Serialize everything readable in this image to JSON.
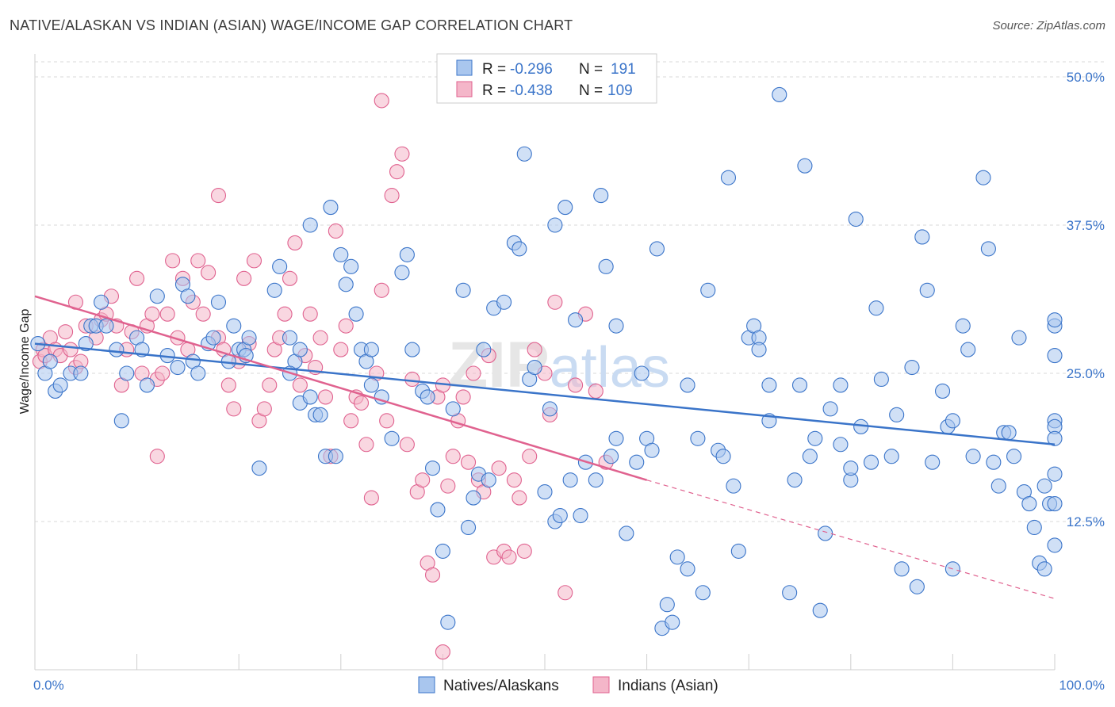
{
  "title": "NATIVE/ALASKAN VS INDIAN (ASIAN) WAGE/INCOME GAP CORRELATION CHART",
  "source": "Source: ZipAtlas.com",
  "watermark": "ZIPatlas",
  "colors": {
    "blue": "#3a74c9",
    "blue_fill": "#a9c6ee",
    "pink": "#e0628f",
    "pink_fill": "#f4b6c9",
    "grid": "#d9d9d9"
  },
  "legend": {
    "rows": [
      {
        "r_label": "R =",
        "r_value": "-0.296",
        "n_label": "N =",
        "n_value": "191"
      },
      {
        "r_label": "R =",
        "r_value": "-0.438",
        "n_label": "N =",
        "n_value": "109"
      }
    ]
  },
  "bottom_legend": [
    "Natives/Alaskans",
    "Indians (Asian)"
  ],
  "chart_data": {
    "type": "scatter",
    "title": "NATIVE/ALASKAN VS INDIAN (ASIAN) WAGE/INCOME GAP CORRELATION CHART",
    "ylabel": "Wage/Income Gap",
    "xlabel": "",
    "xlim": [
      0,
      100
    ],
    "ylim": [
      0,
      52
    ],
    "x_tick_labels": [
      "0.0%",
      "100.0%"
    ],
    "y_ticks": [
      12.5,
      25.0,
      37.5,
      50.0
    ],
    "y_tick_labels": [
      "12.5%",
      "25.0%",
      "37.5%",
      "50.0%"
    ],
    "grid": true,
    "legend_position": "top-center",
    "series": [
      {
        "name": "Natives/Alaskans",
        "r": -0.296,
        "n": 191,
        "trend": {
          "x": [
            0,
            100
          ],
          "y": [
            27.5,
            19.0
          ]
        },
        "points": [
          [
            0.3,
            27.5
          ],
          [
            1,
            25
          ],
          [
            1.5,
            26
          ],
          [
            2,
            23.5
          ],
          [
            2.5,
            24
          ],
          [
            3.5,
            25
          ],
          [
            4.5,
            25
          ],
          [
            5,
            27.5
          ],
          [
            5.5,
            29
          ],
          [
            6,
            29
          ],
          [
            6.5,
            31
          ],
          [
            7,
            29
          ],
          [
            8,
            27
          ],
          [
            8.5,
            21
          ],
          [
            9,
            25
          ],
          [
            10,
            28
          ],
          [
            10.5,
            27
          ],
          [
            11,
            24
          ],
          [
            12,
            31.5
          ],
          [
            13,
            26.5
          ],
          [
            14,
            25.5
          ],
          [
            14.5,
            32.5
          ],
          [
            15,
            31.5
          ],
          [
            15.5,
            26
          ],
          [
            16,
            25
          ],
          [
            17,
            27.5
          ],
          [
            17.5,
            28
          ],
          [
            18,
            31
          ],
          [
            19,
            26
          ],
          [
            19.5,
            29
          ],
          [
            20,
            27
          ],
          [
            20.5,
            27
          ],
          [
            20.7,
            26.5
          ],
          [
            21,
            28
          ],
          [
            22,
            17
          ],
          [
            23.5,
            32
          ],
          [
            24,
            34
          ],
          [
            25,
            28
          ],
          [
            25.5,
            26
          ],
          [
            25,
            25
          ],
          [
            26,
            27
          ],
          [
            26,
            22.5
          ],
          [
            27,
            23
          ],
          [
            27,
            37.5
          ],
          [
            27.5,
            21.5
          ],
          [
            28,
            21.5
          ],
          [
            28.5,
            18
          ],
          [
            29,
            39
          ],
          [
            29.5,
            18
          ],
          [
            30,
            35
          ],
          [
            30.5,
            32.5
          ],
          [
            31,
            34
          ],
          [
            31.5,
            30
          ],
          [
            32,
            27
          ],
          [
            32.5,
            26
          ],
          [
            33,
            27
          ],
          [
            33,
            24
          ],
          [
            34,
            23
          ],
          [
            35,
            19.5
          ],
          [
            36,
            33.5
          ],
          [
            36.5,
            35
          ],
          [
            37,
            27
          ],
          [
            38,
            23.5
          ],
          [
            38.5,
            23
          ],
          [
            39,
            17
          ],
          [
            39.5,
            13.5
          ],
          [
            40,
            10
          ],
          [
            40.5,
            4
          ],
          [
            41,
            22
          ],
          [
            42,
            32
          ],
          [
            42.5,
            12
          ],
          [
            43,
            14.5
          ],
          [
            43.5,
            16.5
          ],
          [
            44,
            27
          ],
          [
            44.5,
            16
          ],
          [
            45,
            30.5
          ],
          [
            46,
            31
          ],
          [
            47,
            36
          ],
          [
            47.5,
            35.5
          ],
          [
            48,
            43.5
          ],
          [
            48.5,
            24.5
          ],
          [
            49,
            25.5
          ],
          [
            50,
            15
          ],
          [
            50.5,
            22
          ],
          [
            51,
            12.5
          ],
          [
            51,
            37.5
          ],
          [
            51.5,
            13
          ],
          [
            52,
            39
          ],
          [
            52.5,
            16
          ],
          [
            53,
            29.5
          ],
          [
            53.5,
            13
          ],
          [
            54,
            17.5
          ],
          [
            55,
            16
          ],
          [
            55.5,
            40
          ],
          [
            56,
            34
          ],
          [
            57,
            29
          ],
          [
            56.5,
            18
          ],
          [
            57,
            19.5
          ],
          [
            58,
            11.5
          ],
          [
            59,
            17.5
          ],
          [
            59.5,
            25
          ],
          [
            60,
            19.5
          ],
          [
            60.5,
            18.5
          ],
          [
            61,
            35.5
          ],
          [
            61.5,
            3.5
          ],
          [
            62,
            5.5
          ],
          [
            62.5,
            4
          ],
          [
            63,
            9.5
          ],
          [
            64,
            24
          ],
          [
            64,
            8.5
          ],
          [
            65,
            19.5
          ],
          [
            66,
            32
          ],
          [
            65.5,
            6.5
          ],
          [
            67,
            18.5
          ],
          [
            67.5,
            18
          ],
          [
            68,
            41.5
          ],
          [
            68.5,
            15.5
          ],
          [
            69,
            10
          ],
          [
            70,
            28
          ],
          [
            70.5,
            29
          ],
          [
            71,
            28
          ],
          [
            71,
            27
          ],
          [
            72,
            24
          ],
          [
            72,
            21
          ],
          [
            73,
            48.5
          ],
          [
            74,
            6.5
          ],
          [
            74.5,
            16
          ],
          [
            75,
            24
          ],
          [
            75.5,
            42.5
          ],
          [
            76,
            18
          ],
          [
            76.5,
            19.5
          ],
          [
            77,
            5
          ],
          [
            77.5,
            11.5
          ],
          [
            78,
            22
          ],
          [
            79,
            24
          ],
          [
            79,
            19
          ],
          [
            80,
            16
          ],
          [
            80,
            17
          ],
          [
            80.5,
            38
          ],
          [
            81,
            20.5
          ],
          [
            82,
            17.5
          ],
          [
            82.5,
            30.5
          ],
          [
            83,
            24.5
          ],
          [
            84,
            18
          ],
          [
            84.5,
            21.5
          ],
          [
            85,
            8.5
          ],
          [
            86,
            25.5
          ],
          [
            86.5,
            7
          ],
          [
            87,
            36.5
          ],
          [
            87.5,
            32
          ],
          [
            88,
            17.5
          ],
          [
            89,
            23.5
          ],
          [
            89.5,
            20.5
          ],
          [
            90,
            21
          ],
          [
            90,
            8.5
          ],
          [
            91,
            29
          ],
          [
            91.5,
            27
          ],
          [
            92,
            18
          ],
          [
            93,
            41.5
          ],
          [
            93.5,
            35.5
          ],
          [
            94,
            17.5
          ],
          [
            94.5,
            15.5
          ],
          [
            95,
            20
          ],
          [
            95.5,
            20
          ],
          [
            96,
            18
          ],
          [
            96.5,
            28
          ],
          [
            97,
            15
          ],
          [
            97.5,
            14
          ],
          [
            98,
            12
          ],
          [
            98.5,
            9
          ],
          [
            99,
            8.5
          ],
          [
            99,
            15.5
          ],
          [
            99.5,
            14
          ],
          [
            100,
            14
          ],
          [
            100,
            10.5
          ],
          [
            100,
            21
          ],
          [
            100,
            26.5
          ],
          [
            100,
            29
          ],
          [
            100,
            29.5
          ],
          [
            100,
            20.5
          ],
          [
            100,
            19.5
          ],
          [
            100,
            16.5
          ]
        ]
      },
      {
        "name": "Indians (Asian)",
        "r": -0.438,
        "n": 109,
        "trend": {
          "x": [
            0,
            60
          ],
          "y": [
            31.5,
            16.0
          ]
        },
        "trend_dashed": {
          "x": [
            60,
            100
          ],
          "y": [
            16.0,
            6.0
          ]
        },
        "points": [
          [
            0.5,
            26
          ],
          [
            0.8,
            27
          ],
          [
            1,
            26.5
          ],
          [
            1.5,
            28
          ],
          [
            2,
            27
          ],
          [
            2.5,
            26.5
          ],
          [
            3,
            28.5
          ],
          [
            3.5,
            27
          ],
          [
            4,
            25.5
          ],
          [
            4.5,
            26
          ],
          [
            5,
            29
          ],
          [
            6,
            28
          ],
          [
            6.5,
            29.5
          ],
          [
            7,
            30
          ],
          [
            7.5,
            31.5
          ],
          [
            8,
            29
          ],
          [
            8.5,
            24
          ],
          [
            9,
            27
          ],
          [
            9.5,
            28.5
          ],
          [
            10,
            33
          ],
          [
            10.5,
            25
          ],
          [
            11,
            29
          ],
          [
            11.5,
            30
          ],
          [
            12,
            24.5
          ],
          [
            12.5,
            25
          ],
          [
            13,
            30
          ],
          [
            13.5,
            34.5
          ],
          [
            14,
            28
          ],
          [
            14.5,
            33
          ],
          [
            15,
            27
          ],
          [
            15.5,
            31
          ],
          [
            16,
            34.5
          ],
          [
            16.5,
            30
          ],
          [
            17,
            33.5
          ],
          [
            18,
            28
          ],
          [
            18.5,
            27
          ],
          [
            19,
            24
          ],
          [
            19.5,
            22
          ],
          [
            20,
            26
          ],
          [
            20.5,
            33
          ],
          [
            21,
            27.5
          ],
          [
            21.5,
            34.5
          ],
          [
            22,
            21
          ],
          [
            22.5,
            22
          ],
          [
            23,
            24
          ],
          [
            23.5,
            27
          ],
          [
            24,
            28
          ],
          [
            24.5,
            30
          ],
          [
            25,
            33
          ],
          [
            25.5,
            36
          ],
          [
            26,
            24
          ],
          [
            26.5,
            26.5
          ],
          [
            27,
            30
          ],
          [
            27.5,
            25.5
          ],
          [
            28,
            28
          ],
          [
            28.5,
            23
          ],
          [
            29,
            18
          ],
          [
            29.5,
            37
          ],
          [
            30,
            27
          ],
          [
            30.5,
            29
          ],
          [
            31,
            21
          ],
          [
            31.5,
            23
          ],
          [
            32,
            22.5
          ],
          [
            32.5,
            19
          ],
          [
            33,
            14.5
          ],
          [
            33.5,
            25
          ],
          [
            34,
            32
          ],
          [
            34.5,
            21
          ],
          [
            35,
            40
          ],
          [
            35.5,
            42
          ],
          [
            36,
            43.5
          ],
          [
            36.5,
            19
          ],
          [
            37,
            24.5
          ],
          [
            37.5,
            15
          ],
          [
            38,
            16
          ],
          [
            38.5,
            9
          ],
          [
            39,
            8
          ],
          [
            39.5,
            23
          ],
          [
            40,
            24
          ],
          [
            40.5,
            15.5
          ],
          [
            41,
            18
          ],
          [
            41.5,
            21
          ],
          [
            42,
            23
          ],
          [
            42.5,
            17.5
          ],
          [
            43,
            25
          ],
          [
            43.5,
            16
          ],
          [
            44,
            15
          ],
          [
            44.5,
            26.5
          ],
          [
            45,
            9.5
          ],
          [
            45.5,
            17
          ],
          [
            46,
            10
          ],
          [
            46.5,
            9.5
          ],
          [
            47,
            16
          ],
          [
            47.5,
            14.5
          ],
          [
            48,
            10
          ],
          [
            48.5,
            18
          ],
          [
            49,
            27
          ],
          [
            50,
            25
          ],
          [
            50.5,
            21.5
          ],
          [
            51,
            31
          ],
          [
            52,
            6.5
          ],
          [
            53,
            24
          ],
          [
            54,
            30
          ],
          [
            55,
            23.5
          ],
          [
            56,
            17.5
          ],
          [
            40,
            1.5
          ],
          [
            34,
            48
          ],
          [
            18,
            40
          ],
          [
            12,
            18
          ],
          [
            4,
            31
          ]
        ]
      }
    ]
  }
}
